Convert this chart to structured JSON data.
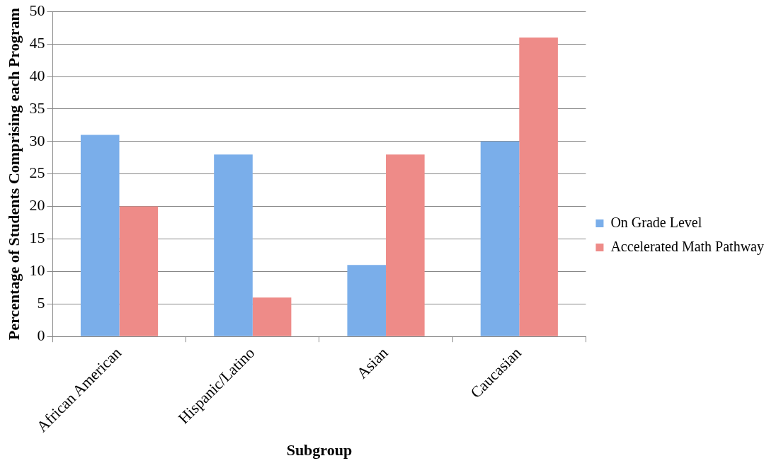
{
  "chart_data": {
    "type": "bar",
    "xlabel": "Subgroup",
    "ylabel": "Percentage of Students Comprising each Program",
    "categories": [
      "African American",
      "Hispanic/Latino",
      "Asian",
      "Caucasian"
    ],
    "series": [
      {
        "name": "On Grade Level",
        "color": "#7aaeea",
        "values": [
          31,
          28,
          11,
          30
        ]
      },
      {
        "name": "Accelerated Math Pathway",
        "color": "#ee8b88",
        "values": [
          20,
          6,
          28,
          46
        ]
      }
    ],
    "ylim": [
      0,
      50
    ],
    "yticks": [
      0,
      5,
      10,
      15,
      20,
      25,
      30,
      35,
      40,
      45,
      50
    ],
    "grid": "y",
    "legend": "right"
  }
}
